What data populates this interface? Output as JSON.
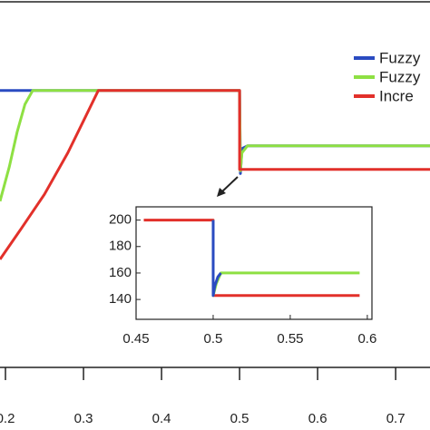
{
  "chart_data": [
    {
      "type": "line",
      "series": [
        {
          "name": "Fuzzy",
          "color": "#2a4bc1",
          "x": [
            0.193,
            0.5,
            0.501,
            0.503,
            0.51,
            0.744
          ],
          "values": [
            200,
            200,
            140,
            158,
            160,
            160
          ]
        },
        {
          "name": "Fuzzy",
          "color": "#8ee043",
          "x": [
            0.193,
            0.205,
            0.215,
            0.225,
            0.235,
            0.5,
            0.501,
            0.503,
            0.51,
            0.744
          ],
          "values": [
            120,
            145,
            170,
            190,
            200,
            200,
            142,
            155,
            160,
            160
          ]
        },
        {
          "name": "Incre",
          "color": "#e2302a",
          "x": [
            0.193,
            0.22,
            0.25,
            0.28,
            0.3,
            0.319,
            0.5,
            0.5,
            0.744
          ],
          "values": [
            78,
            100,
            125,
            155,
            178,
            200,
            200,
            143,
            143
          ]
        }
      ],
      "xlim": [
        0.193,
        0.744
      ],
      "xticks": [
        0.2,
        0.3,
        0.4,
        0.5,
        0.6,
        0.7
      ],
      "ylim": [
        0,
        264
      ],
      "legend": "upper right"
    },
    {
      "type": "line",
      "series": [
        {
          "color": "#e2302a",
          "x": [
            0.455,
            0.5,
            0.5,
            0.595
          ],
          "values": [
            200,
            200,
            143,
            143
          ]
        },
        {
          "color": "#8ee043",
          "x": [
            0.5,
            0.5,
            0.502,
            0.505,
            0.595
          ],
          "values": [
            200,
            143,
            152,
            160,
            160
          ]
        },
        {
          "color": "#2a4bc1",
          "x": [
            0.5,
            0.5,
            0.501,
            0.503,
            0.505
          ],
          "values": [
            200,
            143,
            150,
            157,
            160
          ]
        }
      ],
      "xlim": [
        0.45,
        0.603
      ],
      "xticks": [
        0.45,
        0.5,
        0.55,
        0.6
      ],
      "ylim": [
        125,
        210
      ],
      "yticks": [
        140,
        160,
        180,
        200
      ]
    }
  ]
}
